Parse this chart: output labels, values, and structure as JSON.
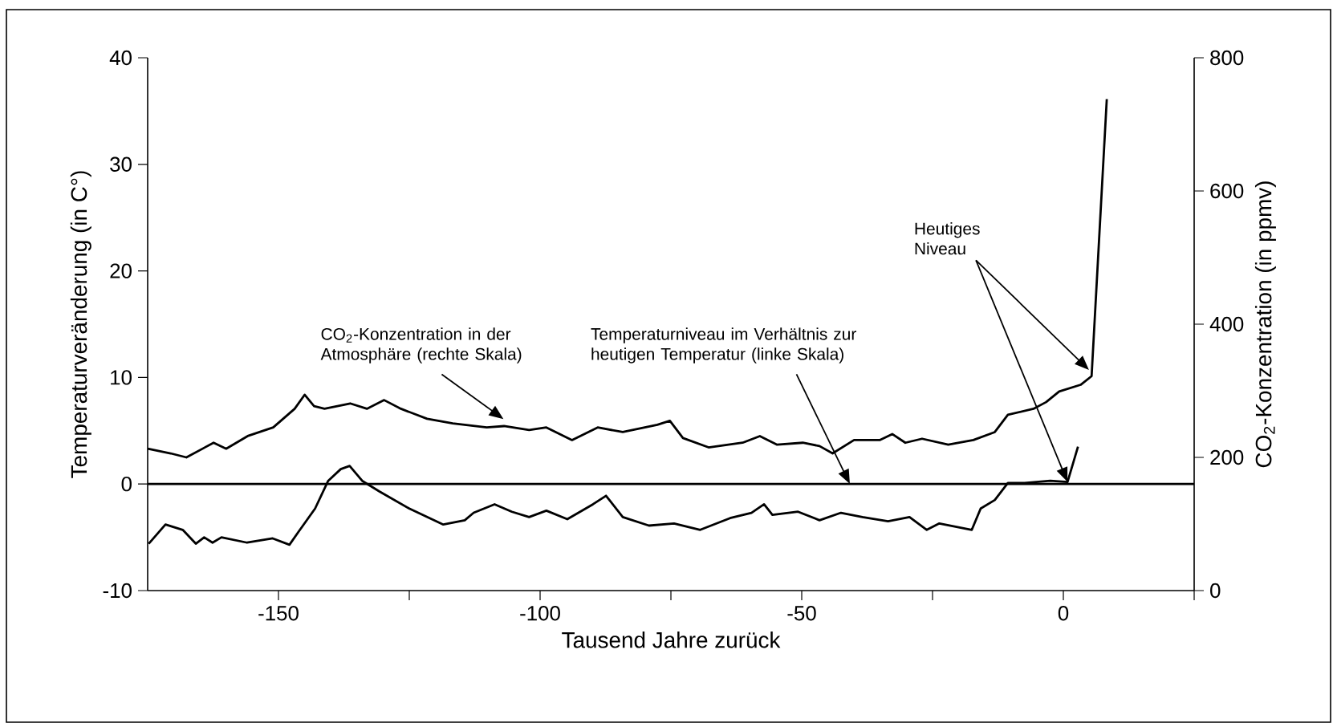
{
  "chart_data": {
    "type": "line",
    "xlabel": "Tausend Jahre zurück",
    "ylabel": "Temperaturveränderung (in C°)",
    "y2label": "CO$_{2}$-Konzentration (in ppmv)",
    "xlim": [
      -175,
      25
    ],
    "xticks": [
      -150,
      {
        "value": -125,
        "label": null
      },
      -100,
      {
        "value": -75,
        "label": null
      },
      -50,
      {
        "value": -25,
        "label": null
      },
      0,
      {
        "value": 25,
        "label": null
      }
    ],
    "ylim": [
      -10,
      40
    ],
    "yticks": [
      -10,
      0,
      10,
      20,
      30,
      40
    ],
    "y2lim": [
      0,
      800
    ],
    "y2ticks": [
      0,
      200,
      400,
      600,
      800
    ],
    "line_style": "solid",
    "ref_lines": [
      {
        "axis": "y",
        "value": 0,
        "color": "#000000"
      }
    ],
    "series": [
      {
        "color": "#000000",
        "axis": "y2",
        "x": [
          -175,
          -170.6,
          -167.6,
          -162.4,
          -160,
          -155.9,
          -151,
          -146.9,
          -145,
          -143.2,
          -141.2,
          -136.3,
          -133.1,
          -129.8,
          -126.6,
          -121.6,
          -116.7,
          -110.2,
          -106.9,
          -102.1,
          -98.8,
          -93.9,
          -89,
          -84.2,
          -77.6,
          -75.2,
          -72.7,
          -67.8,
          -61.3,
          -58,
          -54.7,
          -49.8,
          -46.6,
          -44.1,
          -40,
          -35.1,
          -32.7,
          -30.2,
          -27,
          -22,
          -17.2,
          -13.1,
          -10.6,
          -5.7,
          -3.3,
          -0.8,
          3.3,
          5.4,
          8.3
        ],
        "values": [
          213,
          206,
          200,
          222,
          213,
          232,
          245,
          273,
          294,
          277,
          273,
          281,
          273,
          286,
          273,
          258,
          251,
          245,
          247,
          241,
          245,
          226,
          245,
          238,
          249,
          255,
          229,
          215,
          222,
          232,
          219,
          222,
          217,
          206,
          226,
          226,
          235,
          222,
          228,
          219,
          226,
          238,
          264,
          273,
          283,
          299,
          309,
          322,
          738
        ]
      },
      {
        "color": "#000000",
        "axis": "y",
        "x": [
          -174.8,
          -171.6,
          -168.3,
          -165.8,
          -164.2,
          -162.6,
          -160.9,
          -156,
          -151.1,
          -147.9,
          -146.2,
          -143,
          -140.5,
          -138.1,
          -136.4,
          -134,
          -130.7,
          -125,
          -118.5,
          -114.4,
          -112.7,
          -108.7,
          -105.4,
          -102.1,
          -98.8,
          -94.8,
          -89.9,
          -87.4,
          -84.2,
          -79.2,
          -74.4,
          -69.4,
          -63.7,
          -59.6,
          -57.2,
          -55.6,
          -50.7,
          -46.6,
          -42.5,
          -38.4,
          -33.5,
          -29.4,
          -26.1,
          -23.7,
          -17.5,
          -15.8,
          -13.1,
          -10.6,
          -7.4,
          -2.5,
          0.8,
          2.8
        ],
        "values": [
          -5.6,
          -3.8,
          -4.3,
          -5.6,
          -5.0,
          -5.5,
          -5.0,
          -5.5,
          -5.1,
          -5.7,
          -4.5,
          -2.3,
          0.3,
          1.4,
          1.7,
          0.3,
          -0.7,
          -2.3,
          -3.8,
          -3.4,
          -2.7,
          -1.9,
          -2.6,
          -3.1,
          -2.5,
          -3.3,
          -1.9,
          -1.1,
          -3.1,
          -3.9,
          -3.7,
          -4.3,
          -3.2,
          -2.7,
          -1.9,
          -2.9,
          -2.6,
          -3.4,
          -2.7,
          -3.1,
          -3.5,
          -3.1,
          -4.3,
          -3.7,
          -4.3,
          -2.3,
          -1.5,
          0.1,
          0.1,
          0.3,
          0.2,
          3.5
        ]
      }
    ],
    "annotations": [
      {
        "text": "CO$_{2}$-Konzentration in der Atmosphäre (rechte Skala)",
        "x": -107,
        "y": 6.1
      },
      {
        "text": "Temperaturniveau im Verhältnis zur heutigen Temperatur (linke Skala)",
        "x": -40.8,
        "y": 0
      },
      {
        "text": "Heutiges Niveau",
        "x": 4.9,
        "y": 10.7
      }
    ]
  }
}
